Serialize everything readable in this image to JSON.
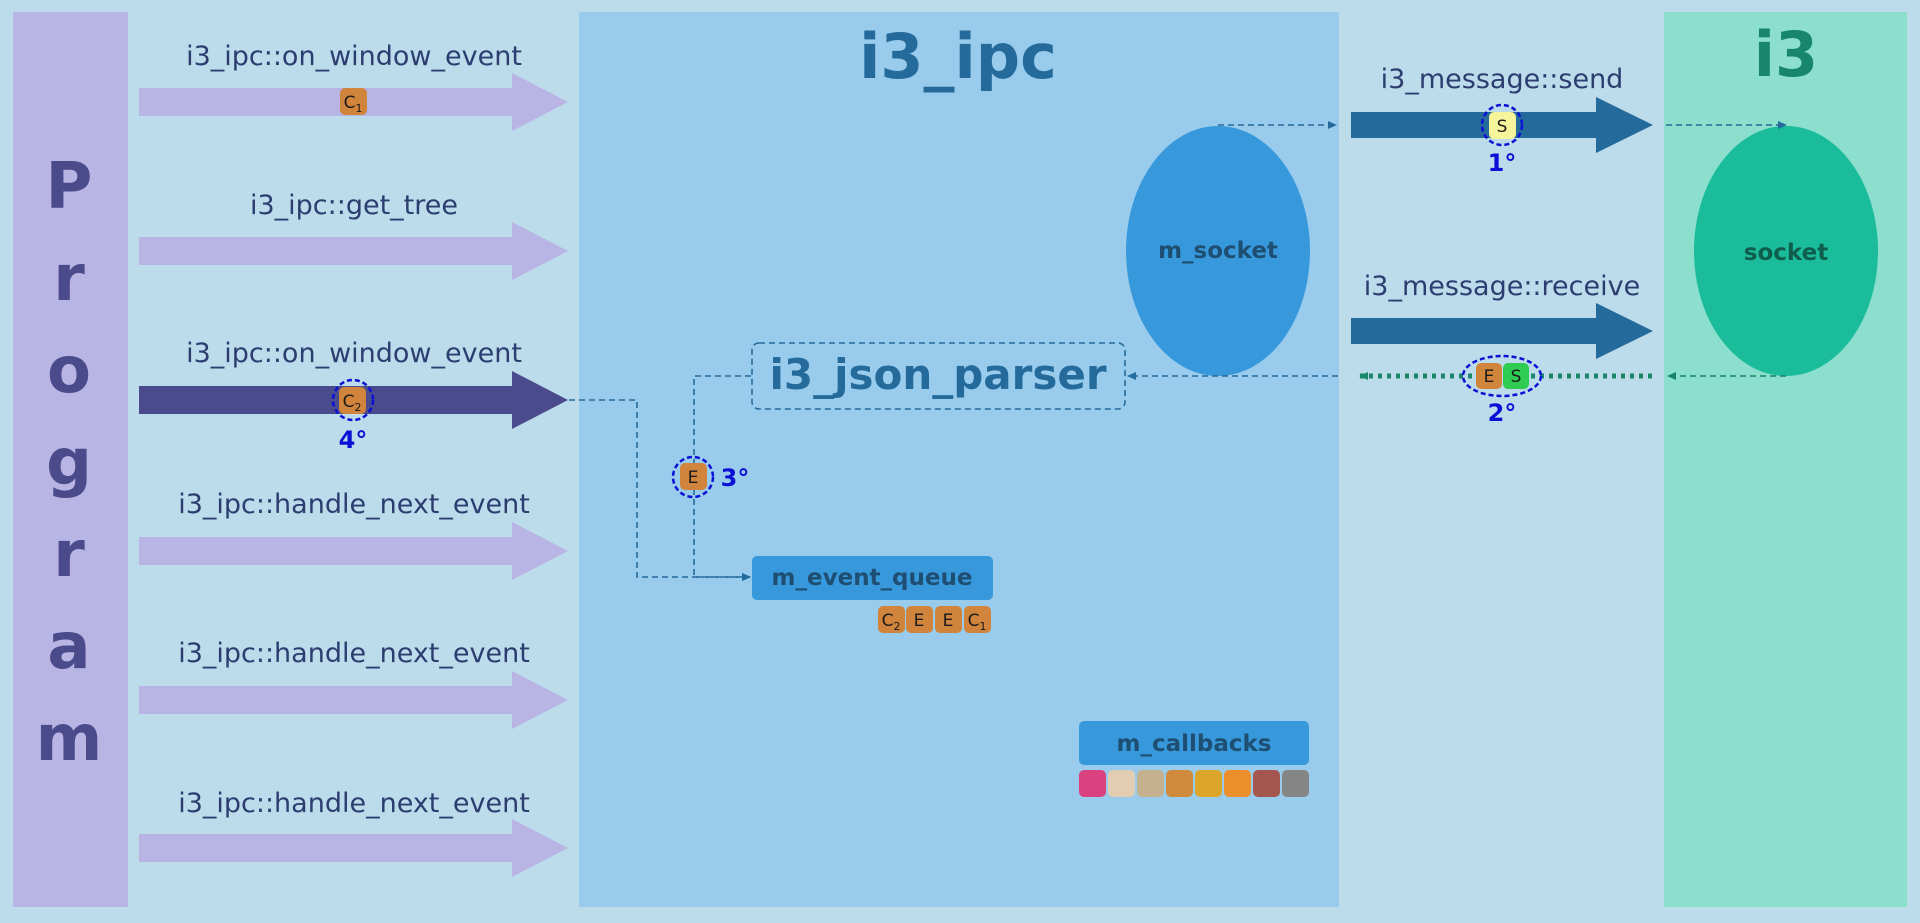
{
  "program": {
    "letters": [
      "P",
      "r",
      "o",
      "g",
      "r",
      "a",
      "m"
    ]
  },
  "calls": [
    {
      "label": "i3_ipc::on_window_event",
      "active": false,
      "token": {
        "letter": "C",
        "sub": "1"
      }
    },
    {
      "label": "i3_ipc::get_tree",
      "active": false
    },
    {
      "label": "i3_ipc::on_window_event",
      "active": true,
      "token": {
        "letter": "C",
        "sub": "2"
      },
      "step": "4°"
    },
    {
      "label": "i3_ipc::handle_next_event",
      "active": false
    },
    {
      "label": "i3_ipc::handle_next_event",
      "active": false
    },
    {
      "label": "i3_ipc::handle_next_event",
      "active": false
    }
  ],
  "ipc": {
    "title": "i3_ipc",
    "socket_label": "m_socket",
    "parser_label": "i3_json_parser",
    "event_token": {
      "letter": "E",
      "step": "3°"
    },
    "event_queue": {
      "label": "m_event_queue",
      "tokens": [
        {
          "letter": "C",
          "sub": "2"
        },
        {
          "letter": "E"
        },
        {
          "letter": "E"
        },
        {
          "letter": "C",
          "sub": "1"
        }
      ]
    },
    "callbacks": {
      "label": "m_callbacks",
      "colors": [
        "#d9427f",
        "#e3cdb2",
        "#c5b08f",
        "#cf8a3c",
        "#dba62a",
        "#ea8f2b",
        "#a3574f",
        "#858585"
      ]
    }
  },
  "messages": {
    "send_label": "i3_message::send",
    "send_token": {
      "letter": "S"
    },
    "send_step": "1°",
    "receive_label": "i3_message::receive",
    "receive_tokens": [
      {
        "letter": "E"
      },
      {
        "letter": "S"
      }
    ],
    "receive_step": "2°"
  },
  "i3": {
    "title": "i3",
    "socket_label": "socket"
  },
  "colors": {
    "background": "#bcdbeb",
    "program_panel": "#b8b5e4",
    "program_text": "#4b4a8a",
    "call_arrow_idle": "#b8b5e4",
    "call_arrow_active": "#4a4b8c",
    "ipc_panel": "#98cbec",
    "ipc_text": "#246b9c",
    "socket_fill": "#3799db",
    "message_arrow": "#246b9c",
    "i3_panel": "#8bdfcc",
    "i3_text": "#17866a",
    "i3_socket_fill": "#1abc9c",
    "token_event": "#d0843c",
    "token_send": "#f7f59c",
    "token_response": "#2ecc52",
    "step_text": "#0a10d6"
  }
}
